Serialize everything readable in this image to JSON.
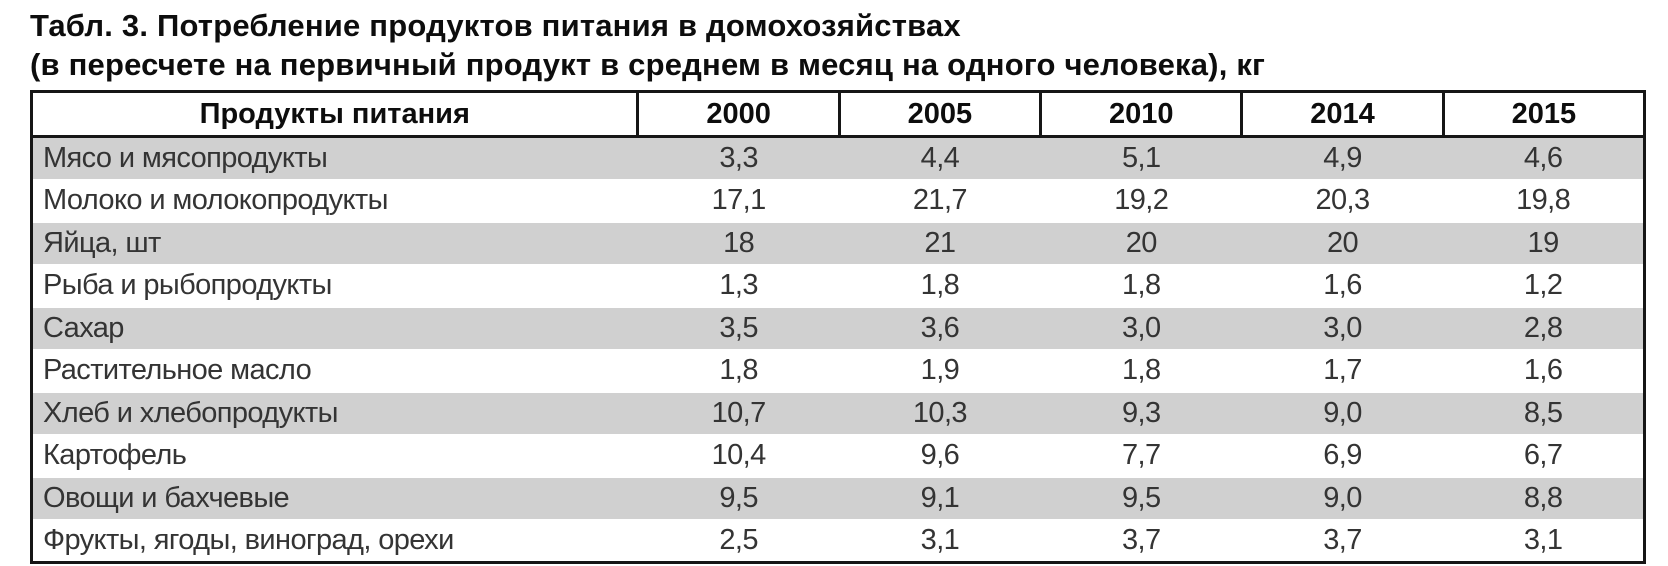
{
  "title": {
    "line1": "Табл. 3. Потребление продуктов питания в домохозяйствах",
    "line2": "(в пересчете на первичный продукт в среднем в месяц на одного человека), кг"
  },
  "table": {
    "columns": [
      "Продукты питания",
      "2000",
      "2005",
      "2010",
      "2014",
      "2015"
    ],
    "rows": [
      {
        "label": "Мясо и мясопродукты",
        "values": [
          "3,3",
          "4,4",
          "5,1",
          "4,9",
          "4,6"
        ]
      },
      {
        "label": "Молоко и молокопродукты",
        "values": [
          "17,1",
          "21,7",
          "19,2",
          "20,3",
          "19,8"
        ]
      },
      {
        "label": "Яйца, шт",
        "values": [
          "18",
          "21",
          "20",
          "20",
          "19"
        ]
      },
      {
        "label": "Рыба и рыбопродукты",
        "values": [
          "1,3",
          "1,8",
          "1,8",
          "1,6",
          "1,2"
        ]
      },
      {
        "label": "Сахар",
        "values": [
          "3,5",
          "3,6",
          "3,0",
          "3,0",
          "2,8"
        ]
      },
      {
        "label": "Растительное масло",
        "values": [
          "1,8",
          "1,9",
          "1,8",
          "1,7",
          "1,6"
        ]
      },
      {
        "label": "Хлеб и хлебопродукты",
        "values": [
          "10,7",
          "10,3",
          "9,3",
          "9,0",
          "8,5"
        ]
      },
      {
        "label": "Картофель",
        "values": [
          "10,4",
          "9,6",
          "7,7",
          "6,9",
          "6,7"
        ]
      },
      {
        "label": "Овощи и бахчевые",
        "values": [
          "9,5",
          "9,1",
          "9,5",
          "9,0",
          "8,8"
        ]
      },
      {
        "label": "Фрукты, ягоды, виноград, орехи",
        "values": [
          "2,5",
          "3,1",
          "3,7",
          "3,7",
          "3,1"
        ]
      }
    ],
    "colors": {
      "row_alt_bg": "#d0d0d0",
      "border": "#161616",
      "data_text": "#343434",
      "header_text": "#0d0d0d"
    }
  }
}
